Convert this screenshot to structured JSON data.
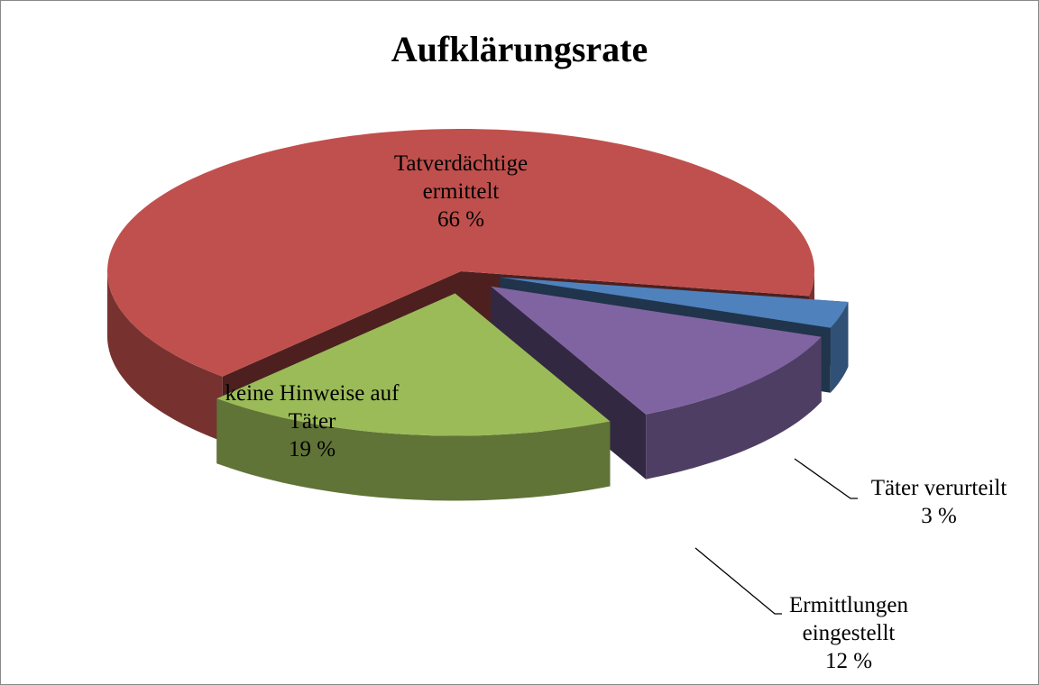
{
  "chart_data": {
    "type": "pie",
    "title": "Aufklärungsrate",
    "categories": [
      "Tatverdächtige ermittelt",
      "Täter verurteilt",
      "Ermittlungen eingestellt",
      "keine Hinweise auf Täter"
    ],
    "values": [
      66,
      3,
      12,
      19
    ],
    "value_labels": [
      "66 %",
      "3 %",
      "12 %",
      "19 %"
    ],
    "colors": [
      "#c0504d",
      "#4f81bd",
      "#8064a2",
      "#9bbb59"
    ]
  }
}
